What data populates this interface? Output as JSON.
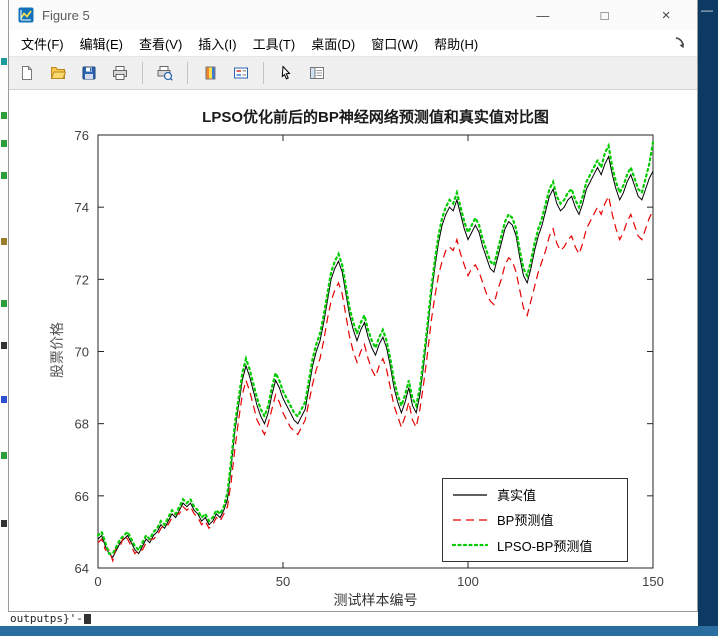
{
  "window": {
    "title": "Figure 5",
    "controls": {
      "minimize": "—",
      "maximize": "□",
      "close": "×"
    }
  },
  "menu": {
    "items": [
      "文件(F)",
      "编辑(E)",
      "查看(V)",
      "插入(I)",
      "工具(T)",
      "桌面(D)",
      "窗口(W)",
      "帮助(H)"
    ]
  },
  "toolbar": {
    "buttons": [
      "new-figure",
      "open-file",
      "save-figure",
      "print-figure",
      "print-preview",
      "insert-colorbar",
      "insert-legend",
      "edit-plot",
      "plot-browser"
    ]
  },
  "background": {
    "editor_text": "outputps}'-",
    "minimize_glyph": "—",
    "statusbar_color": "#2a6ea0"
  },
  "chart_data": {
    "type": "line",
    "title": "LPSO优化前后的BP神经网络预测值和真实值对比图",
    "xlabel": "测试样本编号",
    "ylabel": "股票价格",
    "xlim": [
      0,
      150
    ],
    "ylim": [
      64,
      76
    ],
    "xticks": [
      0,
      50,
      100,
      150
    ],
    "yticks": [
      64,
      66,
      68,
      70,
      72,
      74,
      76
    ],
    "grid": false,
    "legend_position": "lower-right",
    "axis_color": "#262626",
    "tick_label_color": "#404040",
    "x": {
      "start": 0,
      "step": 1,
      "count": 151
    },
    "series": [
      {
        "name": "真实值",
        "color": "#000000",
        "style": "solid",
        "width": 1,
        "values": [
          64.8,
          64.9,
          64.6,
          64.4,
          64.3,
          64.5,
          64.7,
          64.8,
          64.9,
          64.7,
          64.5,
          64.4,
          64.6,
          64.8,
          64.7,
          64.9,
          65.0,
          65.2,
          65.1,
          65.3,
          65.5,
          65.4,
          65.6,
          65.8,
          65.7,
          65.8,
          65.6,
          65.5,
          65.3,
          65.4,
          65.2,
          65.3,
          65.5,
          65.4,
          65.6,
          65.9,
          66.8,
          67.8,
          68.5,
          69.2,
          69.6,
          69.3,
          68.9,
          68.5,
          68.2,
          68.0,
          68.3,
          68.8,
          69.2,
          69.0,
          68.7,
          68.5,
          68.3,
          68.1,
          68.0,
          68.2,
          68.4,
          69.0,
          69.6,
          70.0,
          70.3,
          70.8,
          71.4,
          72.0,
          72.3,
          72.5,
          72.2,
          71.6,
          71.0,
          70.6,
          70.3,
          70.6,
          70.8,
          70.4,
          70.1,
          69.9,
          70.2,
          70.4,
          70.1,
          69.6,
          69.0,
          68.6,
          68.3,
          68.6,
          69.0,
          68.5,
          68.3,
          68.8,
          69.6,
          70.5,
          71.5,
          72.3,
          73.0,
          73.5,
          73.8,
          74.0,
          73.9,
          74.2,
          73.8,
          73.4,
          73.1,
          73.3,
          73.5,
          73.3,
          72.9,
          72.6,
          72.3,
          72.2,
          72.6,
          73.0,
          73.4,
          73.6,
          73.5,
          73.2,
          72.6,
          72.1,
          71.9,
          72.3,
          72.8,
          73.2,
          73.5,
          73.9,
          74.3,
          74.5,
          74.1,
          73.9,
          74.0,
          74.2,
          74.3,
          74.0,
          73.8,
          74.1,
          74.5,
          74.7,
          74.9,
          75.1,
          74.9,
          75.2,
          75.4,
          74.9,
          74.5,
          74.2,
          74.4,
          74.7,
          74.9,
          74.6,
          74.3,
          74.2,
          74.5,
          74.8,
          75.0
        ]
      },
      {
        "name": "BP预测值",
        "color": "#e60000",
        "style": "dashed",
        "width": 1.2,
        "values": [
          64.7,
          64.8,
          64.5,
          64.5,
          64.2,
          64.6,
          64.6,
          64.9,
          64.8,
          64.6,
          64.4,
          64.5,
          64.5,
          64.7,
          64.8,
          64.8,
          64.9,
          65.1,
          65.2,
          65.2,
          65.4,
          65.5,
          65.5,
          65.7,
          65.6,
          65.7,
          65.5,
          65.4,
          65.2,
          65.3,
          65.1,
          65.2,
          65.4,
          65.3,
          65.5,
          65.7,
          66.4,
          67.3,
          68.1,
          68.8,
          69.2,
          68.9,
          68.5,
          68.1,
          67.9,
          67.7,
          68.0,
          68.4,
          68.8,
          68.6,
          68.3,
          68.1,
          67.9,
          67.8,
          67.7,
          67.9,
          68.1,
          68.6,
          69.1,
          69.5,
          69.8,
          70.3,
          70.9,
          71.4,
          71.7,
          71.9,
          71.6,
          71.0,
          70.4,
          70.0,
          69.7,
          70.0,
          70.2,
          69.8,
          69.5,
          69.3,
          69.6,
          69.8,
          69.5,
          69.0,
          68.5,
          68.2,
          67.9,
          68.2,
          68.6,
          68.1,
          67.9,
          68.4,
          69.1,
          69.9,
          70.8,
          71.5,
          72.1,
          72.5,
          72.8,
          72.9,
          72.8,
          73.1,
          72.7,
          72.4,
          72.1,
          72.3,
          72.4,
          72.2,
          71.9,
          71.6,
          71.4,
          71.3,
          71.7,
          72.0,
          72.4,
          72.6,
          72.5,
          72.2,
          71.7,
          71.2,
          71.0,
          71.4,
          71.8,
          72.2,
          72.5,
          72.8,
          73.2,
          73.4,
          73.0,
          72.8,
          72.9,
          73.1,
          73.2,
          72.9,
          72.7,
          73.0,
          73.4,
          73.6,
          73.8,
          74.0,
          73.8,
          74.1,
          74.3,
          73.8,
          73.4,
          73.1,
          73.3,
          73.6,
          73.8,
          73.5,
          73.2,
          73.1,
          73.4,
          73.7,
          73.9
        ]
      },
      {
        "name": "LPSO-BP预测值",
        "color": "#00cc00",
        "style": "dotted",
        "width": 2.2,
        "values": [
          64.9,
          65.0,
          64.7,
          64.4,
          64.4,
          64.6,
          64.8,
          64.9,
          65.0,
          64.8,
          64.6,
          64.5,
          64.7,
          64.9,
          64.8,
          65.0,
          65.1,
          65.3,
          65.2,
          65.4,
          65.6,
          65.5,
          65.7,
          65.9,
          65.8,
          65.9,
          65.7,
          65.6,
          65.4,
          65.5,
          65.3,
          65.4,
          65.6,
          65.5,
          65.7,
          66.1,
          67.0,
          68.0,
          68.7,
          69.4,
          69.8,
          69.5,
          69.1,
          68.7,
          68.4,
          68.2,
          68.5,
          69.0,
          69.4,
          69.2,
          68.9,
          68.7,
          68.5,
          68.3,
          68.2,
          68.4,
          68.6,
          69.2,
          69.8,
          70.2,
          70.5,
          71.0,
          71.6,
          72.2,
          72.5,
          72.7,
          72.4,
          71.8,
          71.2,
          70.8,
          70.5,
          70.8,
          71.0,
          70.6,
          70.3,
          70.1,
          70.4,
          70.6,
          70.3,
          69.8,
          69.2,
          68.8,
          68.5,
          68.8,
          69.2,
          68.7,
          68.5,
          69.0,
          69.8,
          70.7,
          71.7,
          72.5,
          73.2,
          73.7,
          74.0,
          74.2,
          74.1,
          74.4,
          74.0,
          73.6,
          73.3,
          73.5,
          73.7,
          73.5,
          73.1,
          72.8,
          72.5,
          72.4,
          72.8,
          73.2,
          73.6,
          73.8,
          73.7,
          73.4,
          72.8,
          72.3,
          72.1,
          72.5,
          73.0,
          73.4,
          73.7,
          74.1,
          74.5,
          74.7,
          74.3,
          74.1,
          74.2,
          74.4,
          74.5,
          74.2,
          74.0,
          74.3,
          74.7,
          74.9,
          75.1,
          75.3,
          75.1,
          75.5,
          75.7,
          75.1,
          74.7,
          74.4,
          74.6,
          74.9,
          75.1,
          74.8,
          74.5,
          74.4,
          74.8,
          75.2,
          75.8
        ]
      }
    ]
  }
}
